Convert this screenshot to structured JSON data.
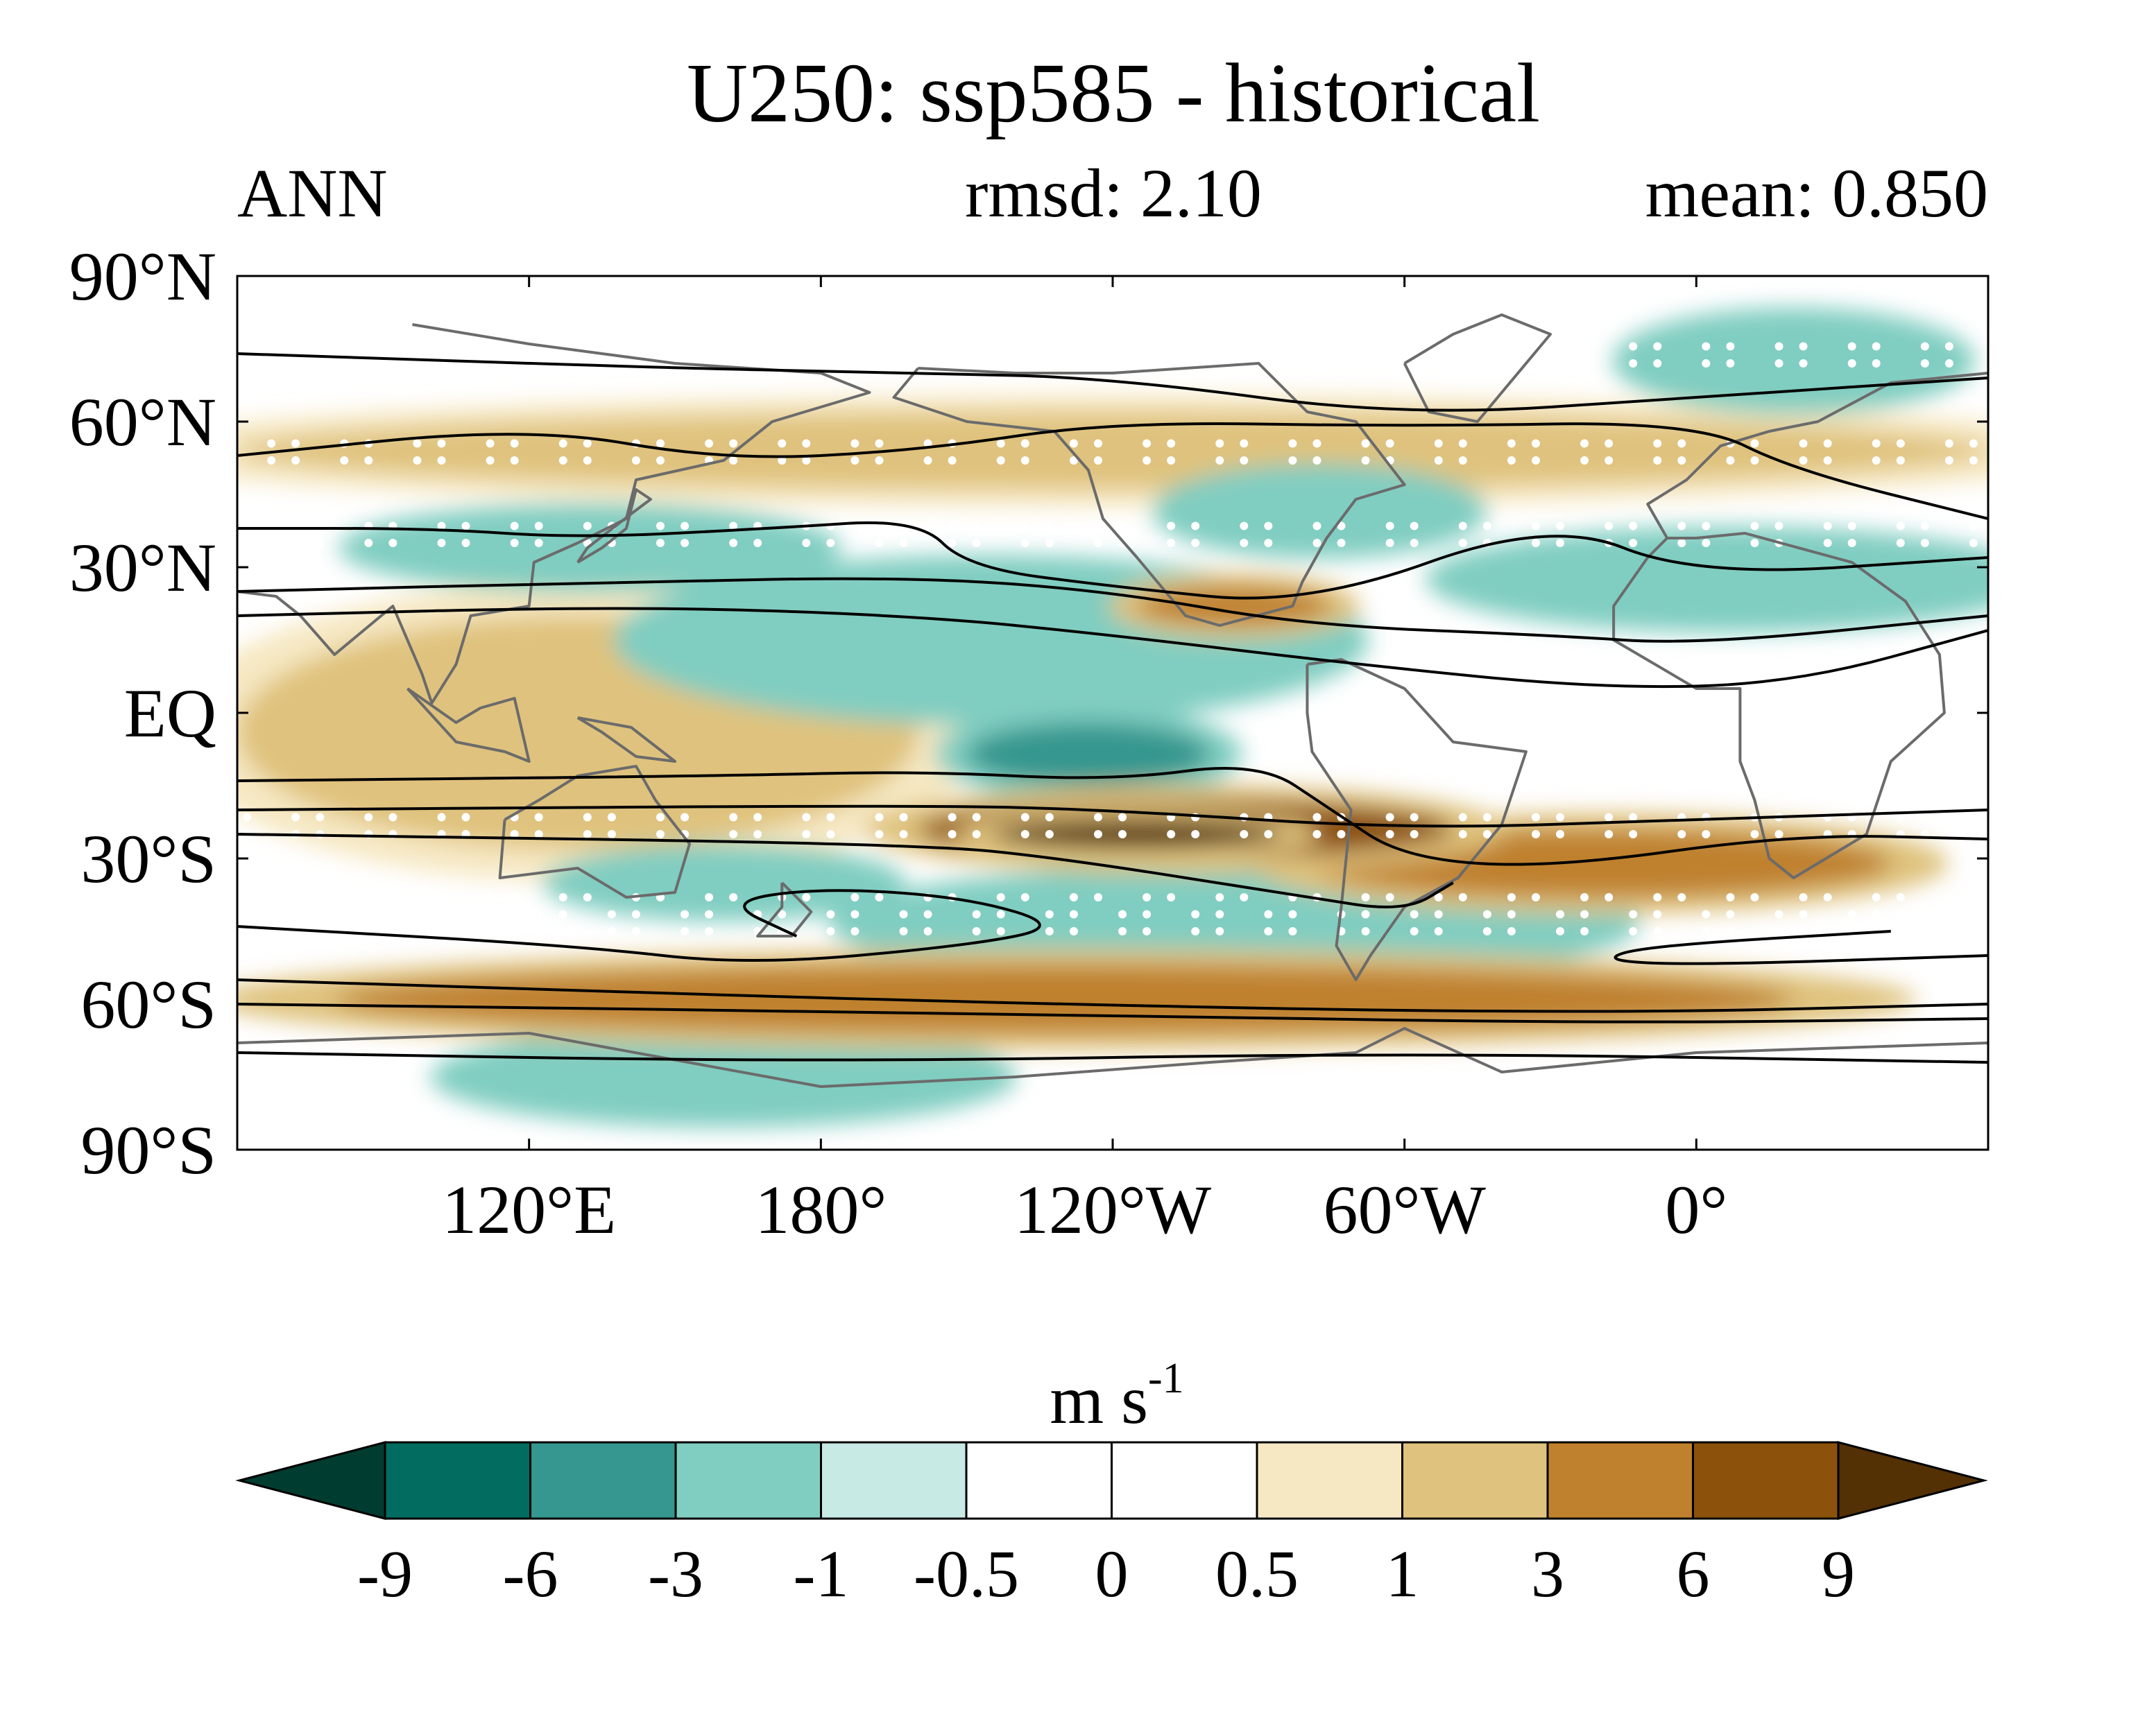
{
  "title": "U250: ssp585 - historical",
  "left_label": "ANN",
  "center_label": "rmsd: 2.10",
  "right_label": "mean: 0.850",
  "map": {
    "projection": "cylindrical equidistant",
    "lon_range": [
      60,
      420
    ],
    "lat_range": [
      -90,
      90
    ],
    "lat_ticks": [
      {
        "value": 90,
        "label": "90°N"
      },
      {
        "value": 60,
        "label": "60°N"
      },
      {
        "value": 30,
        "label": "30°N"
      },
      {
        "value": 0,
        "label": "EQ"
      },
      {
        "value": -30,
        "label": "30°S"
      },
      {
        "value": -60,
        "label": "60°S"
      },
      {
        "value": -90,
        "label": "90°S"
      }
    ],
    "lon_ticks": [
      {
        "value": 120,
        "label": "120°E"
      },
      {
        "value": 180,
        "label": "180°"
      },
      {
        "value": 240,
        "label": "120°W"
      },
      {
        "value": 300,
        "label": "60°W"
      },
      {
        "value": 360,
        "label": "0°"
      }
    ],
    "shading_variable": "U250 difference (ssp585 - historical)",
    "contour_variable": "U250 climatology (historical)"
  },
  "colorbar": {
    "units_base": "m s",
    "units_exp": "-1",
    "levels": [
      "-9",
      "-6",
      "-3",
      "-1",
      "-0.5",
      "0",
      "0.5",
      "1",
      "3",
      "6",
      "9"
    ],
    "colors": [
      "#013c30",
      "#016c5f",
      "#35978f",
      "#80cdc1",
      "#c7eae5",
      "#ffffff",
      "#ffffff",
      "#f6e8c3",
      "#dfc27d",
      "#bf812d",
      "#8c510a",
      "#543005"
    ]
  },
  "colors": {
    "coast": "#6b6b6b",
    "contour": "#000000",
    "stipple": "#ffffff"
  },
  "chart_data": {
    "type": "heatmap",
    "title": "U250: ssp585 - historical",
    "xlabel": "",
    "ylabel": "",
    "xlim": [
      60,
      420
    ],
    "ylim": [
      -90,
      90
    ],
    "scale_levels": [
      -9,
      -6,
      -3,
      -1,
      -0.5,
      0,
      0.5,
      1,
      3,
      6,
      9
    ],
    "anomaly_features": [
      {
        "name": "",
        "lon": [
          210,
          260
        ],
        "lat": [
          -15,
          -2
        ],
        "value": -6
      },
      {
        "name": "",
        "lon": [
          150,
          280
        ],
        "lat": [
          2,
          28
        ],
        "value": -3
      },
      {
        "name": "",
        "lon": [
          90,
          175
        ],
        "lat": [
          28,
          40
        ],
        "value": -3
      },
      {
        "name": "",
        "lon": [
          255,
          310
        ],
        "lat": [
          35,
          48
        ],
        "value": -3
      },
      {
        "name": "",
        "lon": [
          315,
          420
        ],
        "lat": [
          20,
          35
        ],
        "value": -3
      },
      {
        "name": "",
        "lon": [
          195,
          335
        ],
        "lat": [
          -52,
          -35
        ],
        "value": -3
      },
      {
        "name": "",
        "lon": [
          130,
          190
        ],
        "lat": [
          -40,
          -30
        ],
        "value": -3
      },
      {
        "name": "",
        "lon": [
          350,
          410
        ],
        "lat": [
          65,
          80
        ],
        "value": -3
      },
      {
        "name": "",
        "lon": [
          110,
          210
        ],
        "lat": [
          -82,
          -68
        ],
        "value": -3
      },
      {
        "name": "",
        "lon": [
          200,
          310
        ],
        "lat": [
          -30,
          -18
        ],
        "value": 6
      },
      {
        "name": "",
        "lon": [
          215,
          275
        ],
        "lat": [
          -28,
          -22
        ],
        "value": 9
      },
      {
        "name": "",
        "lon": [
          280,
          400
        ],
        "lat": [
          -38,
          -24
        ],
        "value": 3
      },
      {
        "name": "",
        "lon": [
          80,
          380
        ],
        "lat": [
          -66,
          -52
        ],
        "value": 3
      },
      {
        "name": "",
        "lon": [
          60,
          200
        ],
        "lat": [
          -28,
          20
        ],
        "value": 1
      },
      {
        "name": "",
        "lon": [
          60,
          420
        ],
        "lat": [
          46,
          62
        ],
        "value": 1
      },
      {
        "name": "",
        "lon": [
          245,
          285
        ],
        "lat": [
          18,
          26
        ],
        "value": 3
      }
    ]
  }
}
